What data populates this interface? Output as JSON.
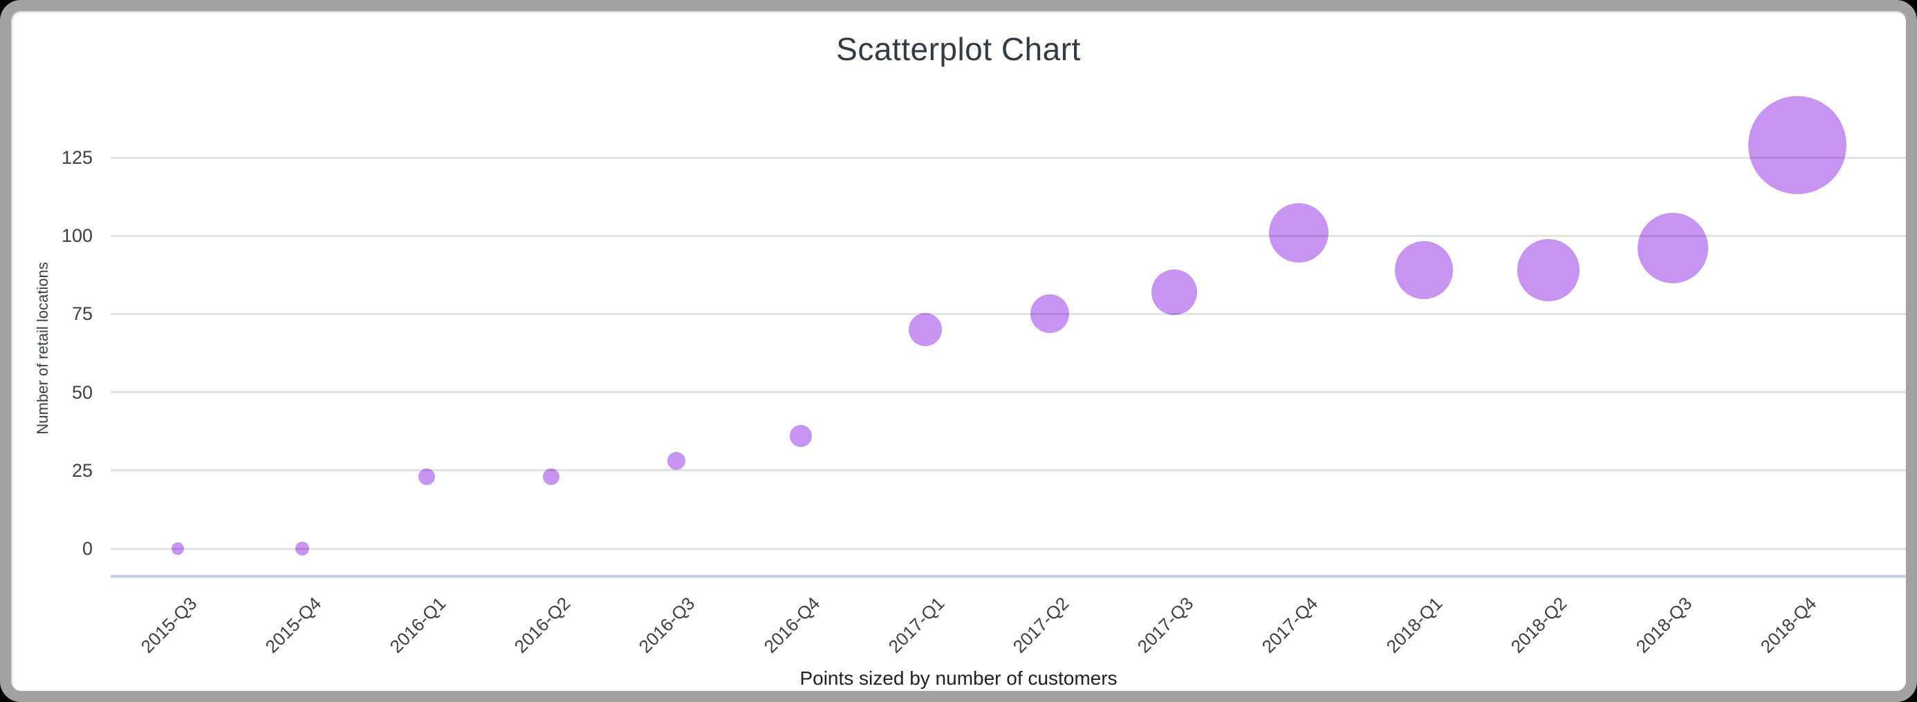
{
  "window": {
    "frame_color": "#a2a2a2",
    "background_color": "#ffffff"
  },
  "chart_data": {
    "type": "scatter",
    "title": "Scatterplot Chart",
    "xlabel": "Points sized by number of customers",
    "ylabel": "Number of retail locations",
    "categories": [
      "2015-Q3",
      "2015-Q4",
      "2016-Q1",
      "2016-Q2",
      "2016-Q3",
      "2016-Q4",
      "2017-Q1",
      "2017-Q2",
      "2017-Q3",
      "2017-Q4",
      "2018-Q1",
      "2018-Q2",
      "2018-Q3",
      "2018-Q4"
    ],
    "series": [
      {
        "name": "Number of retail locations",
        "values": [
          0,
          0,
          23,
          23,
          28,
          36,
          70,
          75,
          82,
          101,
          89,
          89,
          96,
          129
        ],
        "point_radius_px": [
          9,
          10,
          12,
          12,
          13,
          16,
          24,
          28,
          33,
          43,
          42,
          45,
          51,
          71
        ]
      }
    ],
    "size_encoding": "Points sized by number of customers",
    "y_ticks": [
      0,
      25,
      50,
      75,
      100,
      125
    ],
    "ylim": [
      0,
      143
    ],
    "grid": true,
    "legend": "none",
    "point_color": "#c795f1",
    "gridline_color": "rgba(0,0,0,0.11)",
    "baseline_color": "#c7d0e8",
    "text_color": "#3c4043",
    "title_color": "#333b43"
  }
}
